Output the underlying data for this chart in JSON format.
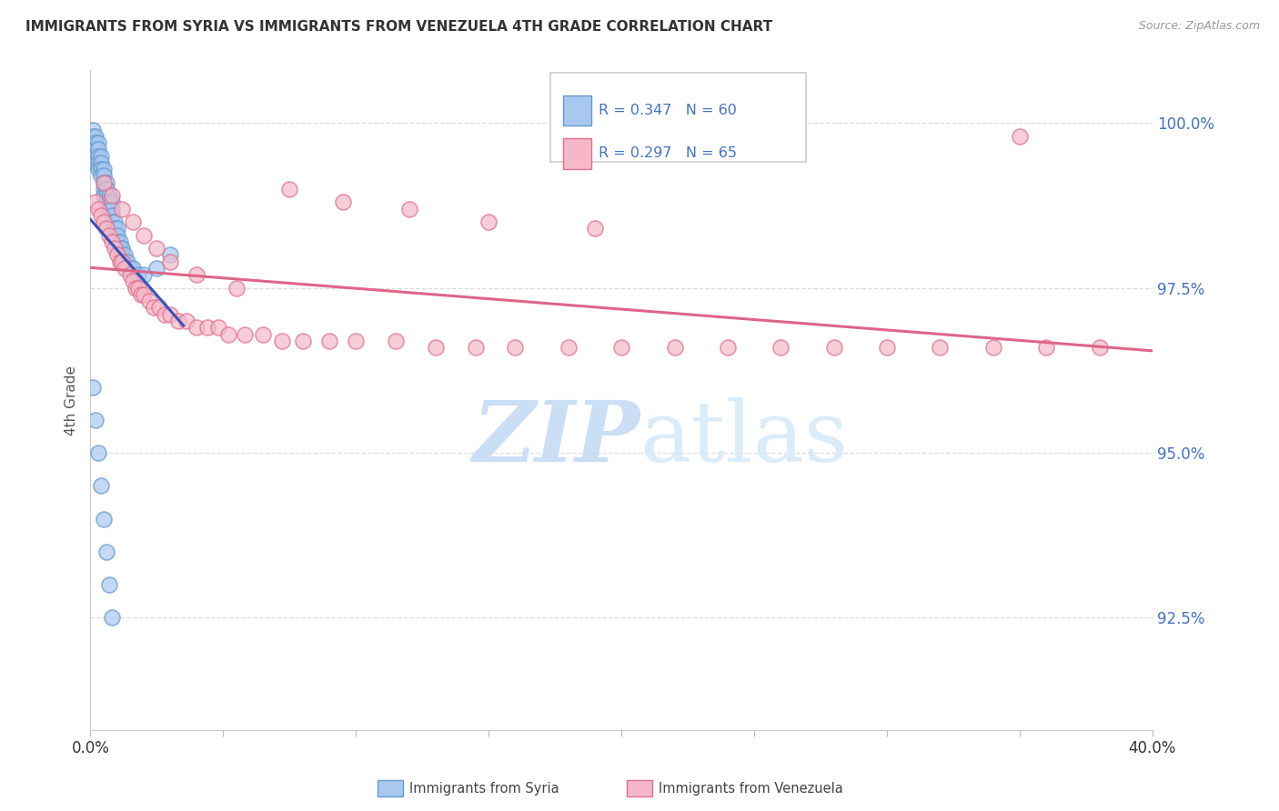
{
  "title": "IMMIGRANTS FROM SYRIA VS IMMIGRANTS FROM VENEZUELA 4TH GRADE CORRELATION CHART",
  "source": "Source: ZipAtlas.com",
  "ylabel": "4th Grade",
  "ytick_labels": [
    "100.0%",
    "97.5%",
    "95.0%",
    "92.5%"
  ],
  "ytick_values": [
    1.0,
    0.975,
    0.95,
    0.925
  ],
  "xmin": 0.0,
  "xmax": 0.4,
  "ymin": 0.908,
  "ymax": 1.008,
  "syria_color": "#A8C8F0",
  "syria_edge_color": "#6699CC",
  "venezuela_color": "#F5B8C8",
  "venezuela_edge_color": "#E07090",
  "trend_syria_color": "#3355BB",
  "trend_venezuela_color": "#DD6688",
  "legend_R_syria": "R = 0.347",
  "legend_N_syria": "N = 60",
  "legend_R_venezuela": "R = 0.297",
  "legend_N_venezuela": "N = 65",
  "watermark_zip": "ZIP",
  "watermark_atlas": "atlas",
  "background_color": "#FFFFFF",
  "grid_color": "#DDDDDD",
  "syria_x": [
    0.001,
    0.001,
    0.001,
    0.002,
    0.002,
    0.002,
    0.002,
    0.002,
    0.003,
    0.003,
    0.003,
    0.003,
    0.003,
    0.004,
    0.004,
    0.004,
    0.004,
    0.005,
    0.005,
    0.005,
    0.005,
    0.005,
    0.006,
    0.006,
    0.006,
    0.006,
    0.007,
    0.007,
    0.007,
    0.008,
    0.008,
    0.008,
    0.008,
    0.009,
    0.009,
    0.009,
    0.01,
    0.01,
    0.01,
    0.011,
    0.011,
    0.012,
    0.012,
    0.013,
    0.013,
    0.014,
    0.015,
    0.016,
    0.018,
    0.02,
    0.001,
    0.002,
    0.003,
    0.004,
    0.005,
    0.006,
    0.007,
    0.008,
    0.025,
    0.03
  ],
  "syria_y": [
    0.999,
    0.998,
    0.997,
    0.998,
    0.997,
    0.996,
    0.995,
    0.994,
    0.997,
    0.996,
    0.995,
    0.994,
    0.993,
    0.995,
    0.994,
    0.993,
    0.992,
    0.993,
    0.992,
    0.991,
    0.99,
    0.989,
    0.991,
    0.99,
    0.989,
    0.988,
    0.989,
    0.988,
    0.987,
    0.988,
    0.987,
    0.986,
    0.985,
    0.985,
    0.984,
    0.983,
    0.984,
    0.983,
    0.982,
    0.982,
    0.981,
    0.981,
    0.98,
    0.98,
    0.979,
    0.979,
    0.978,
    0.978,
    0.977,
    0.977,
    0.96,
    0.955,
    0.95,
    0.945,
    0.94,
    0.935,
    0.93,
    0.925,
    0.978,
    0.98
  ],
  "venezuela_x": [
    0.002,
    0.003,
    0.004,
    0.005,
    0.006,
    0.007,
    0.008,
    0.009,
    0.01,
    0.011,
    0.012,
    0.013,
    0.015,
    0.016,
    0.017,
    0.018,
    0.019,
    0.02,
    0.022,
    0.024,
    0.026,
    0.028,
    0.03,
    0.033,
    0.036,
    0.04,
    0.044,
    0.048,
    0.052,
    0.058,
    0.065,
    0.072,
    0.08,
    0.09,
    0.1,
    0.115,
    0.13,
    0.145,
    0.16,
    0.18,
    0.2,
    0.22,
    0.24,
    0.26,
    0.28,
    0.3,
    0.32,
    0.34,
    0.36,
    0.38,
    0.005,
    0.008,
    0.012,
    0.016,
    0.02,
    0.025,
    0.03,
    0.04,
    0.055,
    0.075,
    0.095,
    0.12,
    0.15,
    0.19,
    0.35
  ],
  "venezuela_y": [
    0.988,
    0.987,
    0.986,
    0.985,
    0.984,
    0.983,
    0.982,
    0.981,
    0.98,
    0.979,
    0.979,
    0.978,
    0.977,
    0.976,
    0.975,
    0.975,
    0.974,
    0.974,
    0.973,
    0.972,
    0.972,
    0.971,
    0.971,
    0.97,
    0.97,
    0.969,
    0.969,
    0.969,
    0.968,
    0.968,
    0.968,
    0.967,
    0.967,
    0.967,
    0.967,
    0.967,
    0.966,
    0.966,
    0.966,
    0.966,
    0.966,
    0.966,
    0.966,
    0.966,
    0.966,
    0.966,
    0.966,
    0.966,
    0.966,
    0.966,
    0.991,
    0.989,
    0.987,
    0.985,
    0.983,
    0.981,
    0.979,
    0.977,
    0.975,
    0.99,
    0.988,
    0.987,
    0.985,
    0.984,
    0.998
  ]
}
